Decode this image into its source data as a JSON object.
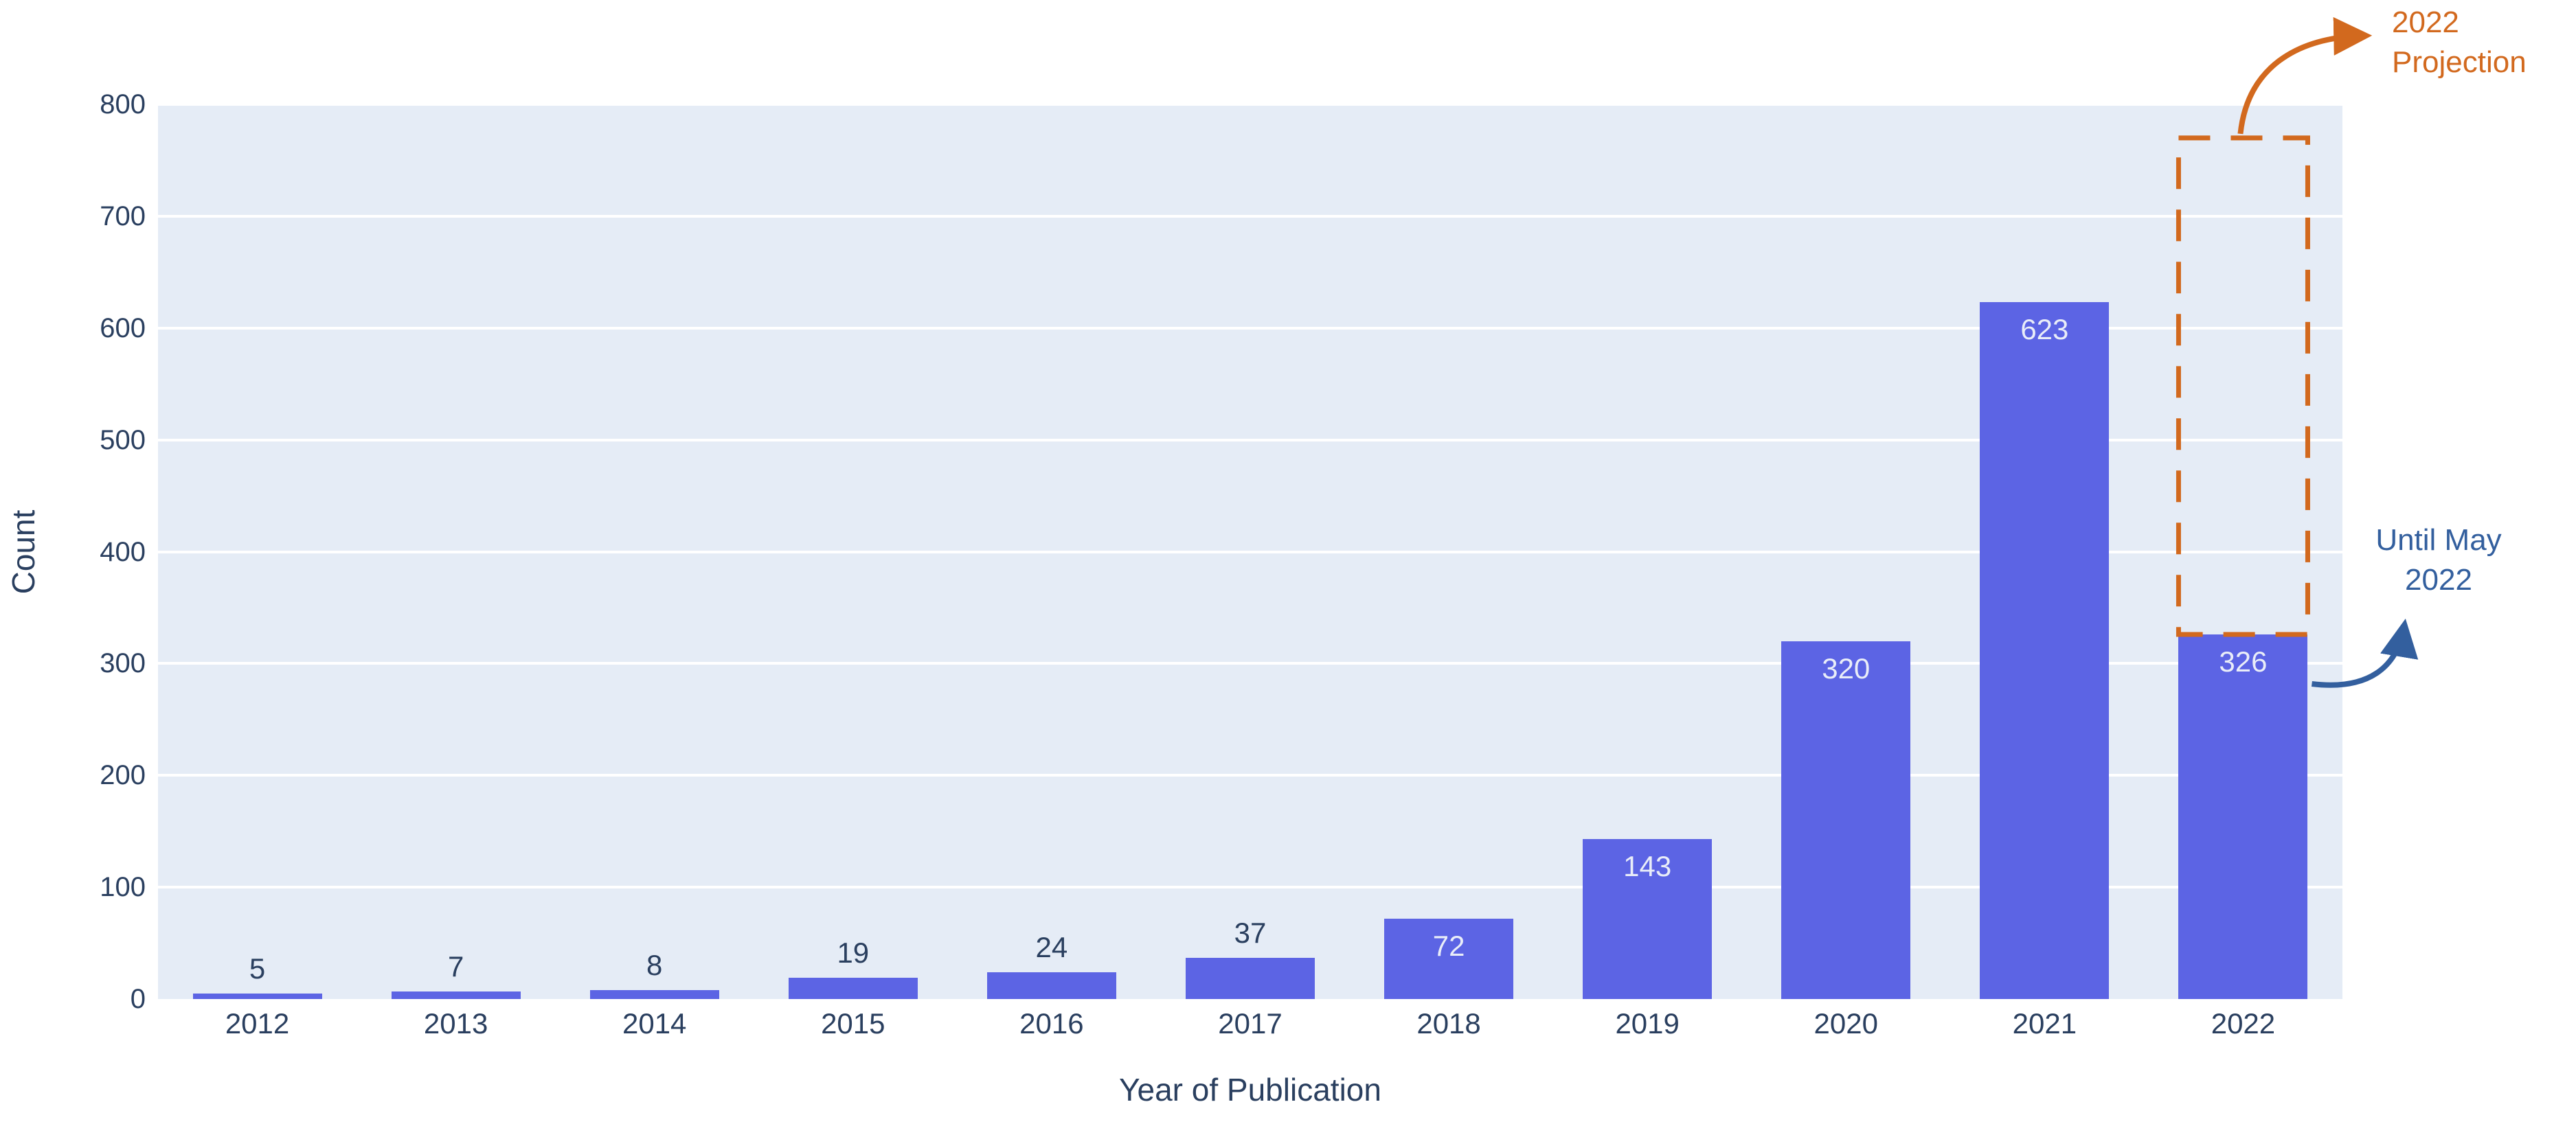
{
  "chart_data": {
    "type": "bar",
    "title": "",
    "xlabel": "Year of Publication",
    "ylabel": "Count",
    "categories": [
      "2012",
      "2013",
      "2014",
      "2015",
      "2016",
      "2017",
      "2018",
      "2019",
      "2020",
      "2021",
      "2022"
    ],
    "values": [
      5,
      7,
      8,
      19,
      24,
      37,
      72,
      143,
      320,
      623,
      326
    ],
    "ylim": [
      0,
      800
    ],
    "ytick_step": 100,
    "yticks": [
      0,
      100,
      200,
      300,
      400,
      500,
      600,
      700,
      800
    ],
    "grid": "on",
    "legend": "none",
    "colors": {
      "bar": "#5c64e4",
      "plot_background": "#e5ecf6",
      "gridline": "#ffffff",
      "tick_text": "#2a3f5f",
      "label_outside": "#2a3f5f",
      "label_inside": "#e9edf8",
      "projection_orange": "#d2691e",
      "annotation_blue": "#335f9e"
    },
    "annotations": {
      "projection": {
        "line1": "2022",
        "line2": "Projection",
        "box_category": "2022",
        "box_top_value": 770,
        "box_bottom_value": 326
      },
      "until_may": {
        "line1": "Until May",
        "line2": "2022"
      }
    }
  }
}
